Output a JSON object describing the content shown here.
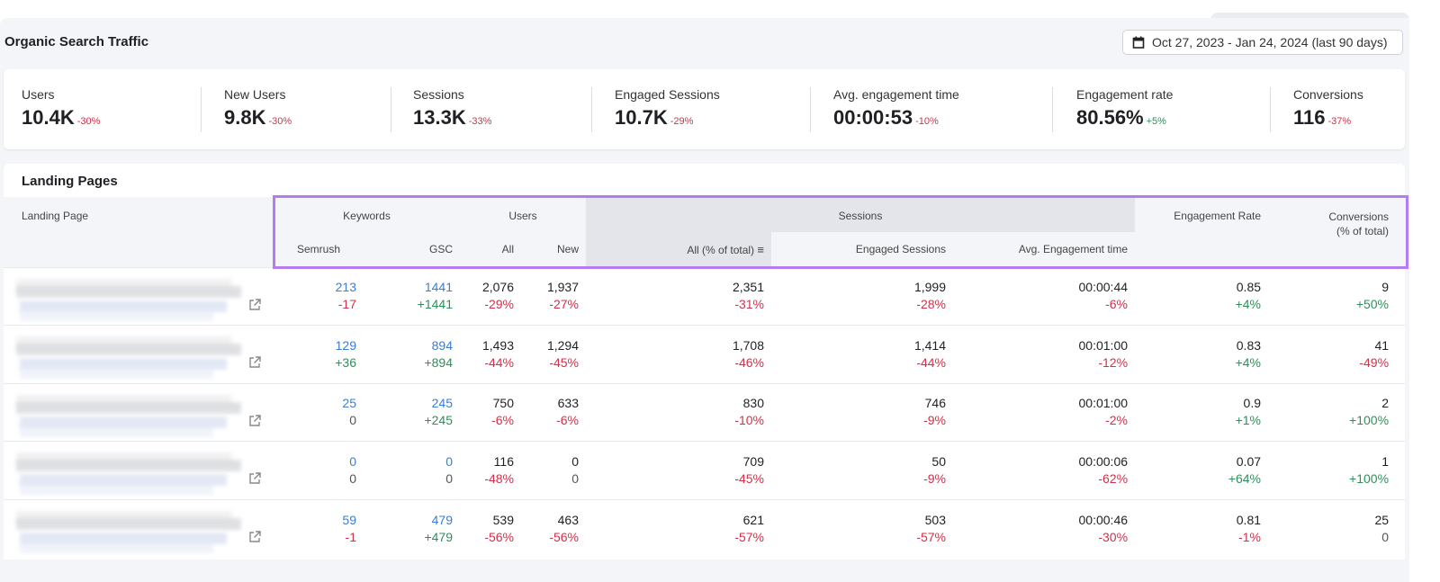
{
  "header": {
    "title": "Organic Search Traffic",
    "date_range": "Oct 27, 2023 - Jan 24, 2024 (last 90 days)",
    "date_icon": "calendar-icon"
  },
  "metrics": [
    {
      "label": "Users",
      "value": "10.4K",
      "change": "-30%",
      "trend": "neg"
    },
    {
      "label": "New Users",
      "value": "9.8K",
      "change": "-30%",
      "trend": "neg"
    },
    {
      "label": "Sessions",
      "value": "13.3K",
      "change": "-33%",
      "trend": "neg"
    },
    {
      "label": "Engaged Sessions",
      "value": "10.7K",
      "change": "-29%",
      "trend": "neg"
    },
    {
      "label": "Avg. engagement time",
      "value": "00:00:53",
      "change": "-10%",
      "trend": "neg"
    },
    {
      "label": "Engagement rate",
      "value": "80.56%",
      "change": "+5%",
      "trend": "pos"
    },
    {
      "label": "Conversions",
      "value": "116",
      "change": "-37%",
      "trend": "neg"
    }
  ],
  "landing": {
    "title": "Landing Pages",
    "headers": {
      "landing_page": "Landing Page",
      "keywords": "Keywords",
      "users": "Users",
      "sessions": "Sessions",
      "engagement_rate": "Engagement Rate",
      "conversions": "Conversions",
      "conversions_sub": "(% of total)",
      "semrush": "Semrush",
      "gsc": "GSC",
      "all": "All",
      "new": "New",
      "sessions_all": "All (% of total)",
      "engaged_sessions": "Engaged Sessions",
      "avg_engagement_time": "Avg. Engagement time"
    },
    "colors": {
      "highlight": "#b37cf0",
      "negative": "#d1314a",
      "positive": "#2f8f5b",
      "link": "#3b7dd0"
    },
    "rows": [
      {
        "semrush": [
          "213",
          "-17"
        ],
        "gsc": [
          "1441",
          "+1441"
        ],
        "all": [
          "2,076",
          "-29%"
        ],
        "new": [
          "1,937",
          "-27%"
        ],
        "sessions": [
          "2,351",
          "-31%"
        ],
        "engaged": [
          "1,999",
          "-28%"
        ],
        "avg": [
          "00:00:44",
          "-6%"
        ],
        "er": [
          "0.85",
          "+4%"
        ],
        "conv": [
          "9",
          "+50%"
        ]
      },
      {
        "semrush": [
          "129",
          "+36"
        ],
        "gsc": [
          "894",
          "+894"
        ],
        "all": [
          "1,493",
          "-44%"
        ],
        "new": [
          "1,294",
          "-45%"
        ],
        "sessions": [
          "1,708",
          "-46%"
        ],
        "engaged": [
          "1,414",
          "-44%"
        ],
        "avg": [
          "00:01:00",
          "-12%"
        ],
        "er": [
          "0.83",
          "+4%"
        ],
        "conv": [
          "41",
          "-49%"
        ]
      },
      {
        "semrush": [
          "25",
          "0"
        ],
        "gsc": [
          "245",
          "+245"
        ],
        "all": [
          "750",
          "-6%"
        ],
        "new": [
          "633",
          "-6%"
        ],
        "sessions": [
          "830",
          "-10%"
        ],
        "engaged": [
          "746",
          "-9%"
        ],
        "avg": [
          "00:01:00",
          "-2%"
        ],
        "er": [
          "0.9",
          "+1%"
        ],
        "conv": [
          "2",
          "+100%"
        ]
      },
      {
        "semrush": [
          "0",
          "0"
        ],
        "gsc": [
          "0",
          "0"
        ],
        "all": [
          "116",
          "-48%"
        ],
        "new": [
          "0",
          "0"
        ],
        "sessions": [
          "709",
          "-45%"
        ],
        "engaged": [
          "50",
          "-9%"
        ],
        "avg": [
          "00:00:06",
          "-62%"
        ],
        "er": [
          "0.07",
          "+64%"
        ],
        "conv": [
          "1",
          "+100%"
        ]
      },
      {
        "semrush": [
          "59",
          "-1"
        ],
        "gsc": [
          "479",
          "+479"
        ],
        "all": [
          "539",
          "-56%"
        ],
        "new": [
          "463",
          "-56%"
        ],
        "sessions": [
          "621",
          "-57%"
        ],
        "engaged": [
          "503",
          "-57%"
        ],
        "avg": [
          "00:00:46",
          "-30%"
        ],
        "er": [
          "0.81",
          "-1%"
        ],
        "conv": [
          "25",
          "0"
        ]
      }
    ]
  }
}
